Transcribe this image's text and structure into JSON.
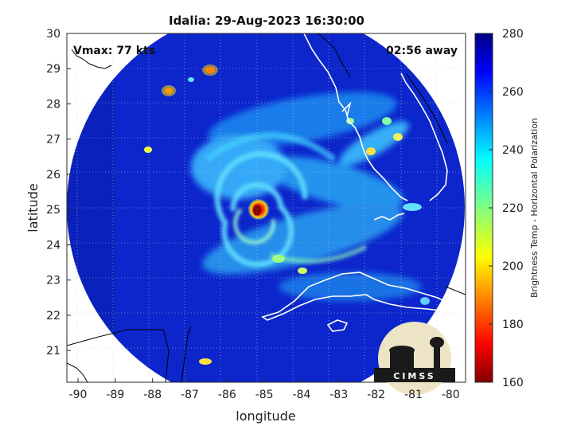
{
  "chart_data": {
    "type": "heatmap",
    "title": "Idalia: 29-Aug-2023 16:30:00",
    "xlabel": "longitude",
    "ylabel": "latitude",
    "xlim": [
      -90.3,
      -79.6
    ],
    "ylim": [
      20.1,
      30.0
    ],
    "x_ticks": [
      -90,
      -89,
      -88,
      -87,
      -86,
      -85,
      -84,
      -83,
      -82,
      -81,
      -80
    ],
    "y_ticks": [
      21,
      22,
      23,
      24,
      25,
      26,
      27,
      28,
      29,
      30
    ],
    "grid": true,
    "annotations": {
      "vmax": "Vmax: 77 kts",
      "time_away": "02:56 away"
    },
    "storm_center": {
      "lon": -85.05,
      "lat": 24.95
    },
    "colorbar": {
      "label": "Brightness Temp - Horizontal Polarization",
      "min": 160,
      "max": 280,
      "ticks": [
        280,
        260,
        240,
        220,
        200,
        180,
        160
      ],
      "colormap": "jet"
    },
    "logo_text": "CIMSS"
  },
  "colors": {
    "background_field": "#0b22c8",
    "coastline": "#ffffff",
    "land_lines": "#000000",
    "warm_core": "#7f0000"
  }
}
